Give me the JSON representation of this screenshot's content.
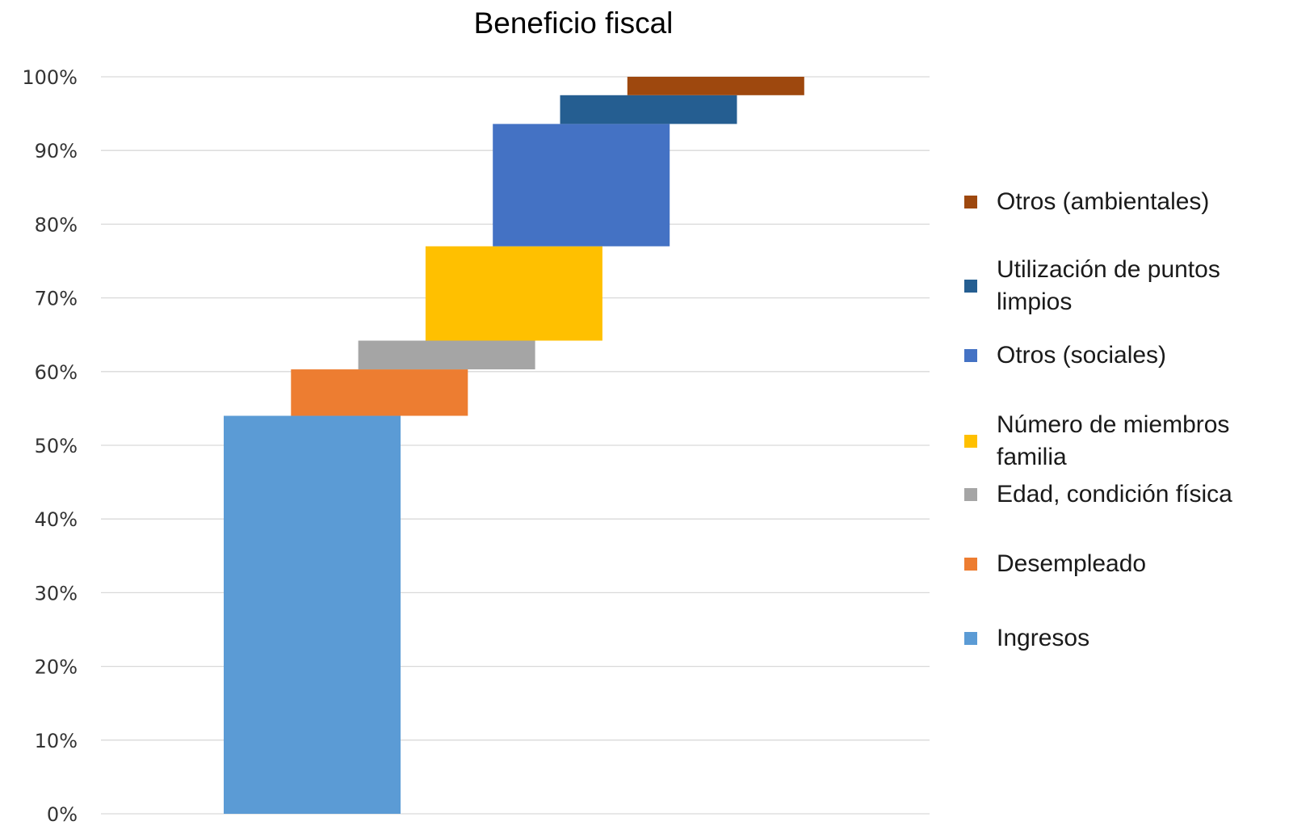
{
  "chart_data": {
    "type": "waterfall",
    "title": "Beneficio fiscal",
    "y_ticks": [
      "0%",
      "10%",
      "20%",
      "30%",
      "40%",
      "50%",
      "60%",
      "70%",
      "80%",
      "90%",
      "100%"
    ],
    "ylim": [
      0,
      100
    ],
    "grid": true,
    "legend_position": "right",
    "series": [
      {
        "name": "Ingresos",
        "start": 0,
        "end": 54,
        "color": "#5B9BD5"
      },
      {
        "name": "Desempleado",
        "start": 54,
        "end": 60.3,
        "color": "#ED7D31"
      },
      {
        "name": "Edad, condición física",
        "start": 60.3,
        "end": 64.2,
        "color": "#A5A5A5"
      },
      {
        "name": "Número de miembros familia",
        "start": 64.2,
        "end": 77,
        "color": "#FFC000"
      },
      {
        "name": "Otros (sociales)",
        "start": 77,
        "end": 93.6,
        "color": "#4472C4"
      },
      {
        "name": "Utilización de puntos limpios",
        "start": 93.6,
        "end": 97.5,
        "color": "#255E91"
      },
      {
        "name": "Otros (ambientales)",
        "start": 97.5,
        "end": 100,
        "color": "#9E480E"
      }
    ]
  }
}
